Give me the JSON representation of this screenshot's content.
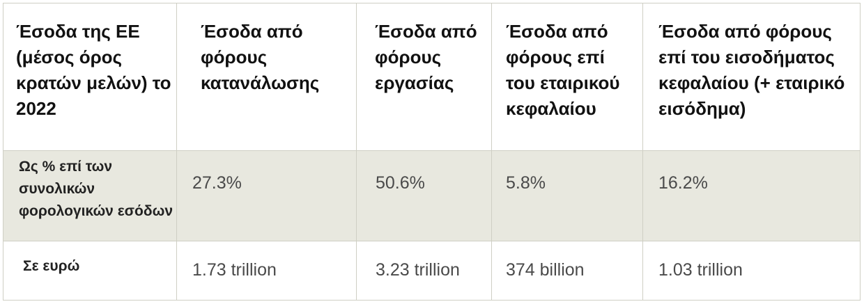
{
  "table": {
    "headers": [
      "Έσοδα της ΕΕ (μέσος όρος κρατών μελών) το 2022",
      "Έσοδα από φόρους κατανάλωσης",
      "Έσοδα από φόρους εργασίας",
      "Έσοδα από φόρους επί του εταιρικού κεφαλαίου",
      "Έσοδα από φόρους επί του εισοδήματος κεφαλαίου (+ εταιρικό εισόδημα)"
    ],
    "rows": [
      {
        "label": "Ως % επί των συνολικών φορολογικών εσόδων",
        "values": [
          "27.3%",
          "50.6%",
          "5.8%",
          "16.2%"
        ]
      },
      {
        "label": "Σε ευρώ",
        "values": [
          "1.73 trillion",
          "3.23 trillion",
          "374 billion",
          "1.03 trillion"
        ]
      }
    ]
  },
  "colors": {
    "header_background": "#ffffff",
    "percent_row_background": "#e8e8df",
    "border": "#cfcfc4",
    "header_text": "#111111",
    "value_text": "#4a4a4a"
  }
}
